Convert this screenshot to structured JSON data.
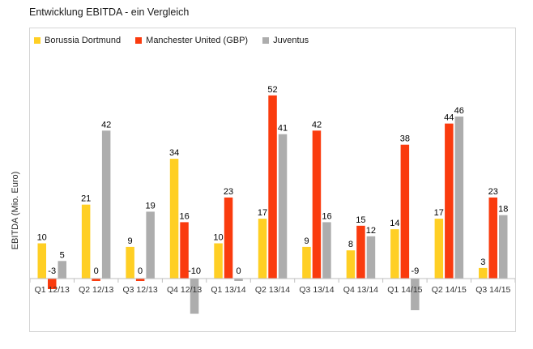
{
  "title": "Entwicklung EBITDA - ein Vergleich",
  "chart_data": {
    "type": "bar",
    "title": "Entwicklung EBITDA - ein Vergleich",
    "xlabel": "",
    "ylabel": "EBITDA (Mio. Euro)",
    "legend_position": "top-left-inside",
    "grid": false,
    "y_axis_tick_labels_visible": false,
    "ylim": [
      -15,
      60
    ],
    "categories": [
      "Q1 12/13",
      "Q2 12/13",
      "Q3 12/13",
      "Q4 12/13",
      "Q1 13/14",
      "Q2 13/14",
      "Q3 13/14",
      "Q4 13/14",
      "Q1 14/15",
      "Q2 14/15",
      "Q3 14/15"
    ],
    "series": [
      {
        "name": "Borussia Dortmund",
        "color": "#FFCF24",
        "values": [
          10,
          21,
          9,
          34,
          10,
          17,
          9,
          8,
          14,
          17,
          3
        ]
      },
      {
        "name": "Manchester United (GBP)",
        "color": "#FA3B0E",
        "values": [
          -3,
          0,
          0,
          16,
          23,
          52,
          42,
          15,
          38,
          44,
          23
        ]
      },
      {
        "name": "Juventus",
        "color": "#ADADAD",
        "values": [
          5,
          42,
          19,
          -10,
          0,
          41,
          16,
          12,
          -9,
          46,
          18
        ]
      }
    ],
    "colors": {
      "plot_border": "#d5d5d5",
      "axis_line": "#bfbfbf",
      "data_label_text": "#000000",
      "category_label_text": "#333333"
    }
  }
}
